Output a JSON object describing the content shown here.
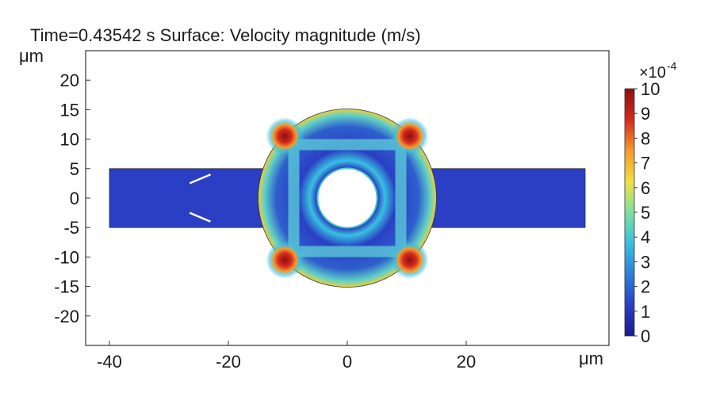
{
  "chart_data": {
    "type": "heatmap",
    "title": "Time=0.43542 s  Surface: Velocity magnitude (m/s)",
    "x_unit": "μm",
    "y_unit": "μm",
    "xlim": [
      -44,
      44
    ],
    "ylim": [
      -25,
      25
    ],
    "x_ticks": [
      -40,
      -20,
      0,
      20
    ],
    "y_ticks": [
      20,
      15,
      10,
      5,
      0,
      -5,
      -10,
      -15,
      -20
    ],
    "x_tick_labels": [
      "-40",
      "-20",
      "0",
      "20"
    ],
    "y_tick_labels": [
      "20",
      "15",
      "10",
      "5",
      "0",
      "-5",
      "-10",
      "-15",
      "-20"
    ],
    "geometry": {
      "channel_x": [
        -40,
        40
      ],
      "channel_y": [
        -5,
        5
      ],
      "chamber_center": [
        0,
        0
      ],
      "chamber_radius": 15,
      "hole_radius": 5
    },
    "colorbar": {
      "multiplier": "×10",
      "exponent": "-4",
      "min": 0,
      "max": 10,
      "ticks": [
        10,
        9,
        8,
        7,
        6,
        5,
        4,
        3,
        2,
        1,
        0
      ],
      "tick_labels": [
        "10",
        "9",
        "8",
        "7",
        "6",
        "5",
        "4",
        "3",
        "2",
        "1",
        "0"
      ],
      "colormap": [
        "#1a1a8e",
        "#2a3fc4",
        "#2e7fd8",
        "#38c0e0",
        "#7fe0a0",
        "#f0e040",
        "#f59a2a",
        "#d42a1e",
        "#8a1010"
      ]
    },
    "hotspots": [
      {
        "x": -10.5,
        "y": 10.5,
        "value": 10
      },
      {
        "x": 10.5,
        "y": 10.5,
        "value": 10
      },
      {
        "x": -10.5,
        "y": -10.5,
        "value": 10
      },
      {
        "x": 10.5,
        "y": -10.5,
        "value": 10
      }
    ]
  }
}
